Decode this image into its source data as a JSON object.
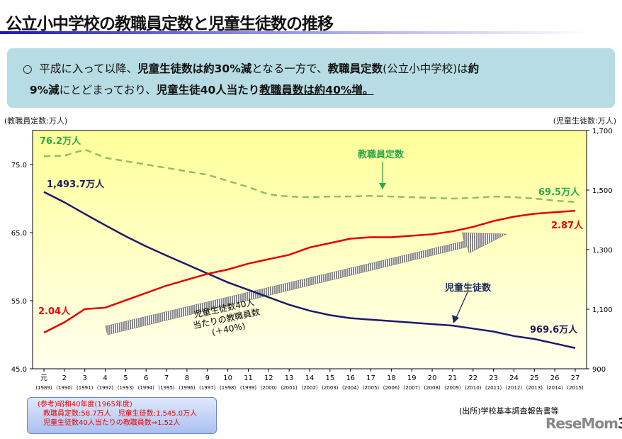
{
  "title": "公立小中学校の教職員定数と児童生徒数の推移",
  "banner": {
    "bullet": "○",
    "p1": "平成に入って以降、",
    "b1": "児童生徒数は約30%減",
    "p2": "となる一方で、",
    "b2": "教職員定数",
    "p3": "(公立小中学校)は",
    "b3": "約",
    "b4": "9%減",
    "p4": "にとどまっており、",
    "b5": "児童生徒40人当たり",
    "u1": "教職員数は約40%増。"
  },
  "chart_data": {
    "type": "line",
    "ylabel_left": "(教職員定数:万人)",
    "ylabel_right": "(児童生徒数:万人)",
    "ylim_left": [
      45,
      80
    ],
    "ylim_right": [
      900,
      1700
    ],
    "yticks_left": [
      "75.0",
      "65.0",
      "55.0",
      "45.0"
    ],
    "yticks_right": [
      "1,700",
      "1,500",
      "1,300",
      "1,100",
      "900"
    ],
    "categories": [
      "元",
      "2",
      "3",
      "4",
      "5",
      "6",
      "7",
      "8",
      "9",
      "10",
      "11",
      "12",
      "13",
      "14",
      "15",
      "16",
      "17",
      "18",
      "19",
      "20",
      "21",
      "22",
      "23",
      "24",
      "25",
      "26",
      "27"
    ],
    "categories_sub": [
      "(1989)",
      "(1990)",
      "(1991)",
      "(1992)",
      "(1993)",
      "(1994)",
      "(1995)",
      "(1996)",
      "(1997)",
      "(1998)",
      "(1999)",
      "(2000)",
      "(2001)",
      "(2002)",
      "(2003)",
      "(2004)",
      "(2005)",
      "(2006)",
      "(2007)",
      "(2008)",
      "(2009)",
      "(2010)",
      "(2011)",
      "(2012)",
      "(2013)",
      "(2014)",
      "(2015)"
    ],
    "grid": false,
    "series": [
      {
        "name": "教職員定数",
        "axis": "left",
        "style": "dashed",
        "color": "#8cc063",
        "values": [
          76.2,
          76.3,
          77.2,
          76.0,
          75.5,
          75.0,
          74.5,
          74.0,
          73.5,
          72.6,
          71.7,
          70.6,
          70.3,
          70.2,
          70.3,
          70.3,
          70.4,
          70.3,
          70.2,
          70.1,
          70.0,
          70.1,
          70.3,
          70.2,
          70.0,
          69.7,
          69.5
        ],
        "start_label": "76.2万人",
        "end_label": "69.5万人"
      },
      {
        "name": "児童生徒数",
        "axis": "right",
        "style": "solid",
        "color": "#1a1a6e",
        "values": [
          1493.7,
          1459,
          1420,
          1382,
          1345,
          1311,
          1280,
          1250,
          1220,
          1190,
          1165,
          1140,
          1115,
          1095,
          1080,
          1070,
          1065,
          1060,
          1055,
          1050,
          1045,
          1035,
          1025,
          1010,
          1000,
          985,
          969.6
        ],
        "start_label": "1,493.7万人",
        "end_label": "969.6万人"
      },
      {
        "name": "児童生徒数40人当たりの教職員数",
        "axis": "none",
        "style": "solid",
        "color": "#e00000",
        "values": [
          2.04,
          2.11,
          2.2,
          2.21,
          2.26,
          2.31,
          2.36,
          2.4,
          2.44,
          2.47,
          2.51,
          2.54,
          2.57,
          2.62,
          2.65,
          2.68,
          2.69,
          2.69,
          2.7,
          2.71,
          2.73,
          2.76,
          2.8,
          2.83,
          2.85,
          2.86,
          2.87
        ],
        "start_label": "2.04人",
        "end_label": "2.87人"
      }
    ],
    "annotations": {
      "teacher": "教職員定数",
      "student": "児童生徒数",
      "arrow_l1": "児童生徒数40人",
      "arrow_l2": "当たりの教職員数",
      "arrow_l3": "(＋40%)"
    },
    "colors": {
      "plot_bg_top": "#ffff99",
      "plot_bg_bottom": "#ffffe8"
    }
  },
  "reference": {
    "l1": "(参考)昭和40年度(1965年度)",
    "l2": "教職員定数:58.7万人　児童生徒数:1,545.0万人",
    "l3": "児童生徒数40人当たりの教職員数⇒1.52人"
  },
  "source": "(出所)学校基本調査報告書等",
  "watermark": "ReseMom",
  "page_number": "3"
}
